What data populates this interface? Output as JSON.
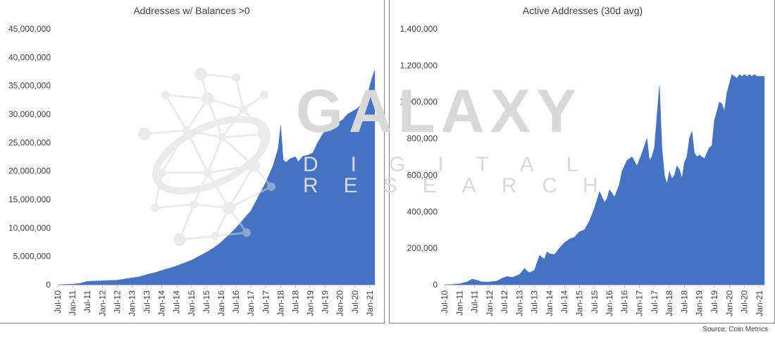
{
  "source": "Source: Coin Metrics",
  "watermark": {
    "line1": "GALAXY",
    "line2": "DIGITAL",
    "line3": "RESEARCH"
  },
  "colors": {
    "area": "#4472c4",
    "text": "#404040",
    "axis": "#bfbfbf",
    "watermark": "#d9d9d9"
  },
  "chart_data": [
    {
      "type": "area",
      "title": "Addresses w/ Balances >0",
      "xlabel": "",
      "ylabel": "",
      "ylim": [
        0,
        45000000
      ],
      "yticks": [
        0,
        5000000,
        10000000,
        15000000,
        20000000,
        25000000,
        30000000,
        35000000,
        40000000,
        45000000
      ],
      "ytick_labels": [
        "0",
        "5,000,000",
        "10,000,000",
        "15,000,000",
        "20,000,000",
        "25,000,000",
        "30,000,000",
        "35,000,000",
        "40,000,000",
        "45,000,000"
      ],
      "xtick_labels": [
        "Jul-10",
        "Jan-11",
        "Jul-11",
        "Jan-12",
        "Jul-12",
        "Jan-13",
        "Jul-13",
        "Jan-14",
        "Jul-14",
        "Jan-15",
        "Jul-15",
        "Jan-16",
        "Jul-16",
        "Jan-17",
        "Jul-17",
        "Jan-18",
        "Jul-18",
        "Jan-19",
        "Jul-19",
        "Jan-20",
        "Jul-20",
        "Jan-21"
      ],
      "series": [
        {
          "x": [
            "2010-07",
            "2010-10",
            "2011-01",
            "2011-04",
            "2011-07",
            "2011-10",
            "2012-01",
            "2012-04",
            "2012-07",
            "2012-10",
            "2013-01",
            "2013-04",
            "2013-07",
            "2013-10",
            "2014-01",
            "2014-04",
            "2014-07",
            "2014-10",
            "2015-01",
            "2015-04",
            "2015-07",
            "2015-10",
            "2016-01",
            "2016-04",
            "2016-07",
            "2016-10",
            "2017-01",
            "2017-04",
            "2017-07",
            "2017-10",
            "2017-12",
            "2018-01",
            "2018-02",
            "2018-03",
            "2018-05",
            "2018-07",
            "2018-08",
            "2018-10",
            "2018-12",
            "2019-02",
            "2019-04",
            "2019-06",
            "2019-08",
            "2019-10",
            "2019-12",
            "2020-02",
            "2020-04",
            "2020-06",
            "2020-08",
            "2020-10",
            "2020-12",
            "2021-01",
            "2021-02",
            "2021-03"
          ],
          "y": [
            0,
            50000,
            100000,
            250000,
            600000,
            650000,
            700000,
            750000,
            800000,
            1000000,
            1200000,
            1400000,
            1800000,
            2100000,
            2500000,
            2900000,
            3300000,
            3800000,
            4300000,
            5000000,
            5700000,
            6500000,
            7500000,
            8700000,
            10000000,
            11500000,
            13000000,
            15500000,
            18000000,
            21000000,
            24000000,
            28000000,
            22000000,
            21500000,
            22200000,
            22500000,
            21600000,
            22600000,
            22800000,
            23200000,
            25000000,
            26500000,
            27500000,
            28200000,
            28500000,
            29000000,
            30000000,
            30500000,
            31000000,
            32000000,
            33000000,
            35000000,
            36500000,
            37700000
          ]
        }
      ]
    },
    {
      "type": "area",
      "title": "Active Addresses (30d avg)",
      "xlabel": "",
      "ylabel": "",
      "ylim": [
        0,
        1400000
      ],
      "yticks": [
        0,
        200000,
        400000,
        600000,
        800000,
        1000000,
        1200000,
        1400000
      ],
      "ytick_labels": [
        "0",
        "200,000",
        "400,000",
        "600,000",
        "800,000",
        "1,000,000",
        "1,200,000",
        "1,400,000"
      ],
      "xtick_labels": [
        "Jul-10",
        "Jan-11",
        "Jul-11",
        "Jan-12",
        "Jul-12",
        "Jan-13",
        "Jul-13",
        "Jan-14",
        "Jul-14",
        "Jan-15",
        "Jul-15",
        "Jan-16",
        "Jul-16",
        "Jan-17",
        "Jul-17",
        "Jan-18",
        "Jul-18",
        "Jan-19",
        "Jul-19",
        "Jan-20",
        "Jul-20",
        "Jan-21"
      ],
      "series": [
        {
          "x": [
            "2010-07",
            "2010-10",
            "2011-01",
            "2011-04",
            "2011-06",
            "2011-08",
            "2011-10",
            "2012-01",
            "2012-04",
            "2012-06",
            "2012-08",
            "2012-10",
            "2013-01",
            "2013-03",
            "2013-04",
            "2013-05",
            "2013-07",
            "2013-09",
            "2013-11",
            "2013-12",
            "2014-01",
            "2014-03",
            "2014-05",
            "2014-07",
            "2014-09",
            "2014-11",
            "2015-01",
            "2015-03",
            "2015-05",
            "2015-07",
            "2015-09",
            "2015-11",
            "2015-12",
            "2016-01",
            "2016-03",
            "2016-05",
            "2016-06",
            "2016-08",
            "2016-10",
            "2016-12",
            "2017-02",
            "2017-04",
            "2017-05",
            "2017-06",
            "2017-07",
            "2017-08",
            "2017-09",
            "2017-10",
            "2017-11",
            "2017-12",
            "2018-01",
            "2018-02",
            "2018-03",
            "2018-04",
            "2018-05",
            "2018-06",
            "2018-07",
            "2018-08",
            "2018-09",
            "2018-10",
            "2018-11",
            "2018-12",
            "2019-01",
            "2019-03",
            "2019-05",
            "2019-06",
            "2019-07",
            "2019-08",
            "2019-09",
            "2019-10",
            "2019-11",
            "2019-12",
            "2020-01",
            "2020-02",
            "2020-03",
            "2020-04",
            "2020-05",
            "2020-06",
            "2020-07",
            "2020-08",
            "2020-09",
            "2020-10",
            "2020-11",
            "2020-12",
            "2021-01",
            "2021-02",
            "2021-03"
          ],
          "y": [
            0,
            2000,
            5000,
            15000,
            30000,
            25000,
            15000,
            15000,
            20000,
            35000,
            45000,
            40000,
            55000,
            90000,
            75000,
            65000,
            80000,
            160000,
            140000,
            180000,
            170000,
            165000,
            200000,
            230000,
            250000,
            260000,
            290000,
            300000,
            350000,
            420000,
            510000,
            450000,
            470000,
            520000,
            480000,
            550000,
            620000,
            680000,
            700000,
            650000,
            720000,
            800000,
            680000,
            700000,
            750000,
            920000,
            1090000,
            750000,
            600000,
            550000,
            620000,
            580000,
            600000,
            650000,
            630000,
            580000,
            670000,
            700000,
            800000,
            840000,
            720000,
            700000,
            710000,
            690000,
            750000,
            760000,
            900000,
            950000,
            1000000,
            990000,
            950000,
            1050000,
            1100000,
            1150000,
            1140000,
            1130000,
            1150000,
            1140000,
            1150000,
            1140000,
            1150000,
            1140000,
            1150000,
            1140000,
            1140000,
            1140000,
            1140000
          ]
        }
      ]
    }
  ]
}
